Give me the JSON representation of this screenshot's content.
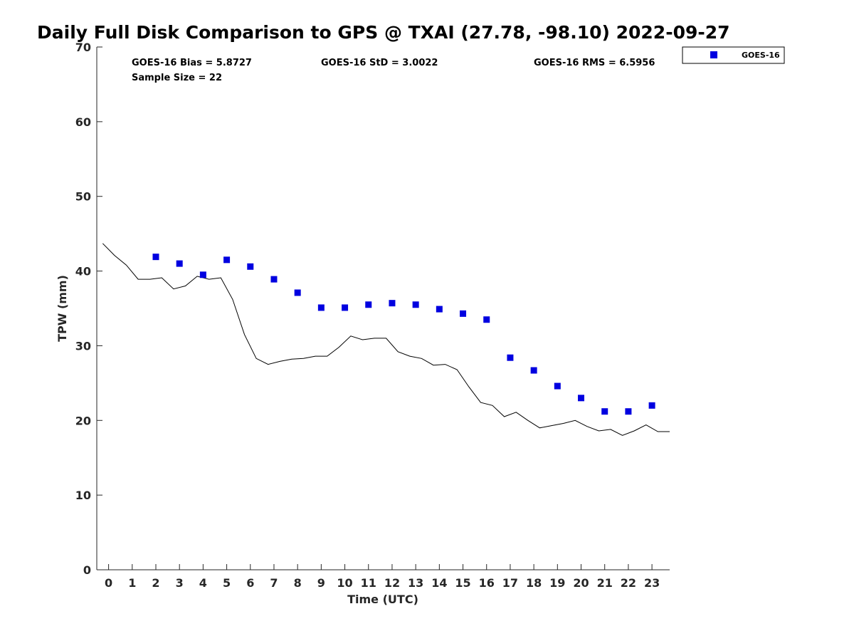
{
  "chart_data": {
    "type": "scatter",
    "title": "Daily Full Disk Comparison to GPS @ TXAI (27.78, -98.10) 2022-09-27",
    "xlabel": "Time (UTC)",
    "ylabel": "TPW (mm)",
    "xlim": [
      -0.5,
      23.75
    ],
    "ylim": [
      0,
      70
    ],
    "xticks": [
      "0",
      "1",
      "2",
      "3",
      "4",
      "5",
      "6",
      "7",
      "8",
      "9",
      "10",
      "11",
      "12",
      "13",
      "14",
      "15",
      "16",
      "17",
      "18",
      "19",
      "20",
      "21",
      "22",
      "23"
    ],
    "yticks": [
      "0",
      "10",
      "20",
      "30",
      "40",
      "50",
      "60",
      "70"
    ],
    "grid": false,
    "legend_position": "top-right",
    "stats": {
      "bias": "GOES-16 Bias = 5.8727",
      "std": "GOES-16 StD = 3.0022",
      "rms": "GOES-16 RMS = 6.5956",
      "sample_size": "Sample Size = 22"
    },
    "series": [
      {
        "name": "GOES-16",
        "marker": "square",
        "color": "#0000e0",
        "x": [
          2,
          3,
          4,
          5,
          6,
          7,
          8,
          9,
          10,
          11,
          12,
          13,
          14,
          15,
          16,
          17,
          18,
          19,
          20,
          21,
          22,
          23
        ],
        "y": [
          41.9,
          41.0,
          39.5,
          41.5,
          40.6,
          38.9,
          37.1,
          35.1,
          35.1,
          35.5,
          35.7,
          35.5,
          34.9,
          34.3,
          33.5,
          28.4,
          26.7,
          24.6,
          23.0,
          21.2,
          21.2,
          22.0
        ]
      },
      {
        "marker": "line",
        "color": "#000000",
        "x": [
          -0.25,
          0.25,
          0.75,
          1.25,
          1.75,
          2.25,
          2.75,
          3.25,
          3.75,
          4.25,
          4.75,
          5.25,
          5.75,
          6.25,
          6.75,
          7.25,
          7.75,
          8.25,
          8.75,
          9.25,
          9.75,
          10.25,
          10.75,
          11.25,
          11.75,
          12.25,
          12.75,
          13.25,
          13.75,
          14.25,
          14.75,
          15.25,
          15.75,
          16.25,
          16.75,
          17.25,
          17.75,
          18.25,
          18.75,
          19.25,
          19.75,
          20.25,
          20.75,
          21.25,
          21.75,
          22.25,
          22.75,
          23.25,
          23.75
        ],
        "y": [
          43.7,
          42.1,
          40.8,
          38.9,
          38.9,
          39.1,
          37.6,
          38.0,
          39.3,
          38.9,
          39.1,
          36.2,
          31.5,
          28.3,
          27.5,
          27.9,
          28.2,
          28.3,
          28.6,
          28.6,
          29.8,
          31.3,
          30.8,
          31.0,
          31.0,
          29.2,
          28.6,
          28.3,
          27.4,
          27.5,
          26.8,
          24.5,
          22.4,
          22.0,
          20.5,
          21.1,
          20.0,
          19.0,
          19.3,
          19.6,
          20.0,
          19.2,
          18.6,
          18.8,
          18.0,
          18.6,
          19.4,
          18.5,
          18.5
        ]
      }
    ]
  }
}
